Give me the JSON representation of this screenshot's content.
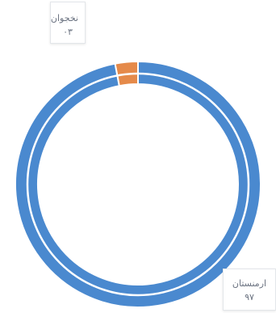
{
  "chart_data": {
    "type": "pie",
    "variant": "donut",
    "categories": [
      "ارمنستان",
      "نخجوان"
    ],
    "values": [
      97,
      3
    ],
    "value_labels": [
      "٩٧",
      "٣"
    ],
    "colors": [
      "#4a89cf",
      "#e58a4a"
    ],
    "legend": "none"
  },
  "tooltips": [
    {
      "label": "نخجوان",
      "value": "٠٣"
    },
    {
      "label": "ارمنستان",
      "value": "٩٧"
    }
  ]
}
